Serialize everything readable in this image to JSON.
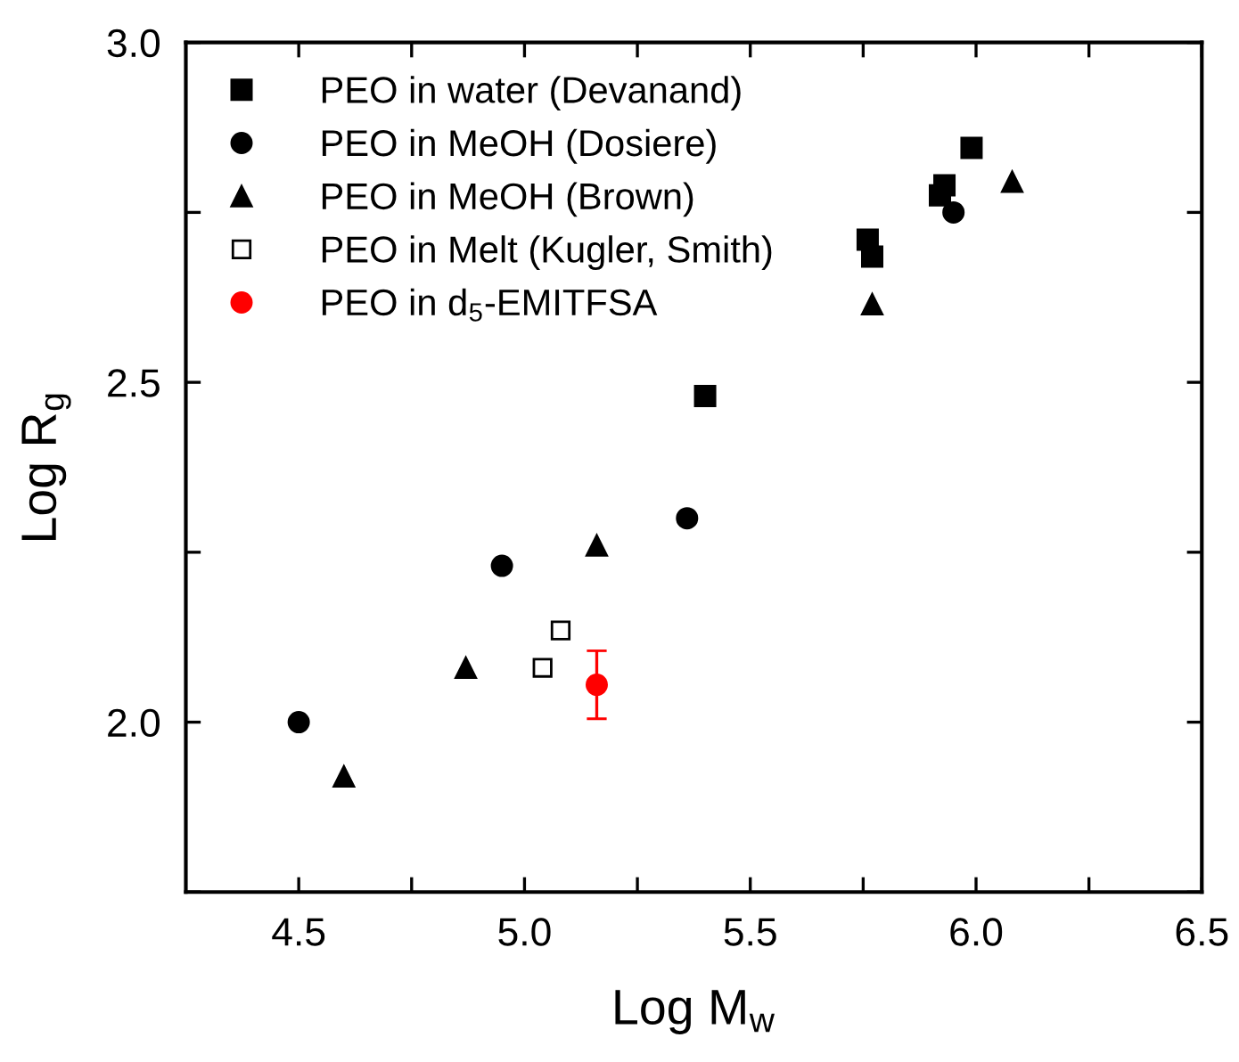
{
  "chart_data": {
    "type": "scatter",
    "xlabel": "Log M$_{w}$",
    "ylabel": "Log R$_{g}$",
    "xlim": [
      4.25,
      6.5
    ],
    "ylim": [
      1.75,
      3.0
    ],
    "xticks": [
      4.5,
      {
        "value": 4.75,
        "label": null
      },
      {
        "value": 5,
        "label": "5.0"
      },
      {
        "value": 5.25,
        "label": null
      },
      5.5,
      {
        "value": 5.75,
        "label": null
      },
      {
        "value": 6,
        "label": "6.0"
      },
      {
        "value": 6.25,
        "label": null
      },
      6.5
    ],
    "yticks": [
      {
        "value": 1.75,
        "label": null
      },
      {
        "value": 2,
        "label": "2.0"
      },
      {
        "value": 2.25,
        "label": null
      },
      2.5,
      {
        "value": 2.75,
        "label": null
      },
      {
        "value": 3,
        "label": "3.0"
      }
    ],
    "grid": false,
    "legend": "top left",
    "series": [
      {
        "name": "PEO in water (Devanand)",
        "color": "#000000",
        "marker": "square",
        "x": [
          5.4,
          5.76,
          5.77,
          5.92,
          5.93,
          5.99
        ],
        "values": [
          2.48,
          2.71,
          2.685,
          2.775,
          2.79,
          2.845
        ]
      },
      {
        "name": "PEO in MeOH (Dosiere)",
        "color": "#000000",
        "marker": "circle",
        "x": [
          4.5,
          4.95,
          5.36,
          5.95
        ],
        "values": [
          2.0,
          2.23,
          2.3,
          2.75
        ]
      },
      {
        "name": "PEO in MeOH (Brown)",
        "color": "#000000",
        "marker": "triangle",
        "x": [
          4.6,
          4.87,
          5.16,
          5.77,
          6.08
        ],
        "values": [
          1.92,
          2.08,
          2.26,
          2.615,
          2.795
        ]
      },
      {
        "name": "PEO in Melt (Kugler, Smith)",
        "color": "#000000",
        "marker": "square-open",
        "x": [
          5.04,
          5.08
        ],
        "values": [
          2.08,
          2.135
        ]
      },
      {
        "name": "PEO in d$_{5}$-EMITFSA",
        "color": "#ff0000",
        "marker": "circle",
        "x": [
          5.16
        ],
        "values": [
          2.055
        ],
        "errors": [
          [
            2.005,
            2.105
          ]
        ]
      }
    ]
  }
}
